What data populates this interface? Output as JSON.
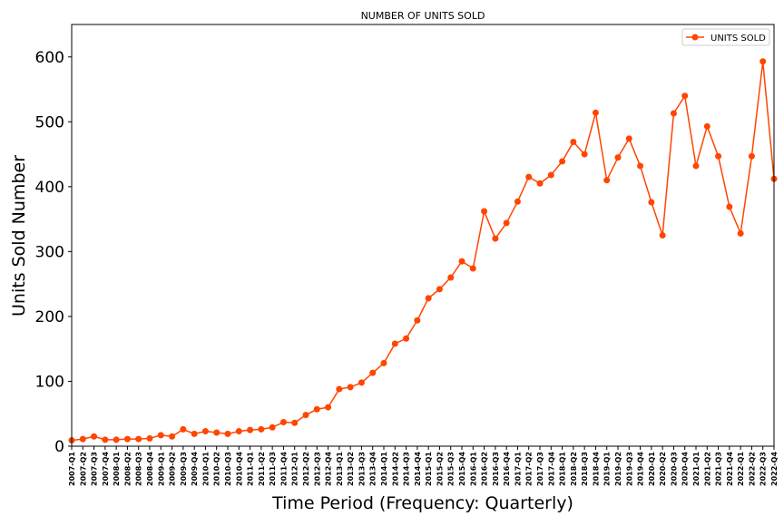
{
  "chart_data": {
    "type": "line",
    "title": "NUMBER OF UNITS SOLD",
    "xlabel": "Time Period (Frequency: Quarterly)",
    "ylabel": "Units Sold Number",
    "ylim": [
      0,
      650
    ],
    "yticks": [
      0,
      100,
      200,
      300,
      400,
      500,
      600
    ],
    "grid": false,
    "legend_position": "top-right",
    "colors": {
      "series": "#ff4500",
      "axis": "#000000",
      "background": "#ffffff"
    },
    "categories": [
      "2007-Q1",
      "2007-Q2",
      "2007-Q3",
      "2007-Q4",
      "2008-Q1",
      "2008-Q2",
      "2008-Q3",
      "2008-Q4",
      "2009-Q1",
      "2009-Q2",
      "2009-Q3",
      "2009-Q4",
      "2010-Q1",
      "2010-Q2",
      "2010-Q3",
      "2010-Q4",
      "2011-Q1",
      "2011-Q2",
      "2011-Q3",
      "2011-Q4",
      "2012-Q1",
      "2012-Q2",
      "2012-Q3",
      "2012-Q4",
      "2013-Q1",
      "2013-Q2",
      "2013-Q3",
      "2013-Q4",
      "2014-Q1",
      "2014-Q2",
      "2014-Q3",
      "2014-Q4",
      "2015-Q1",
      "2015-Q2",
      "2015-Q3",
      "2015-Q4",
      "2016-Q1",
      "2016-Q2",
      "2016-Q3",
      "2016-Q4",
      "2017-Q1",
      "2017-Q2",
      "2017-Q3",
      "2017-Q4",
      "2018-Q1",
      "2018-Q2",
      "2018-Q3",
      "2018-Q4",
      "2019-Q1",
      "2019-Q2",
      "2019-Q3",
      "2019-Q4",
      "2020-Q1",
      "2020-Q2",
      "2020-Q3",
      "2020-Q4",
      "2021-Q1",
      "2021-Q2",
      "2021-Q3",
      "2021-Q4",
      "2022-Q1",
      "2022-Q2",
      "2022-Q3",
      "2022-Q4"
    ],
    "series": [
      {
        "name": "UNITS SOLD",
        "values": [
          9,
          11,
          15,
          10,
          10,
          11,
          11,
          12,
          17,
          15,
          26,
          19,
          23,
          21,
          19,
          23,
          25,
          26,
          29,
          37,
          36,
          48,
          57,
          60,
          88,
          91,
          98,
          113,
          128,
          158,
          166,
          194,
          228,
          242,
          260,
          285,
          274,
          362,
          320,
          344,
          377,
          415,
          405,
          418,
          439,
          469,
          450,
          514,
          410,
          445,
          474,
          432,
          376,
          325,
          513,
          540,
          432,
          493,
          447,
          369,
          328,
          447,
          593,
          412
        ]
      }
    ]
  }
}
